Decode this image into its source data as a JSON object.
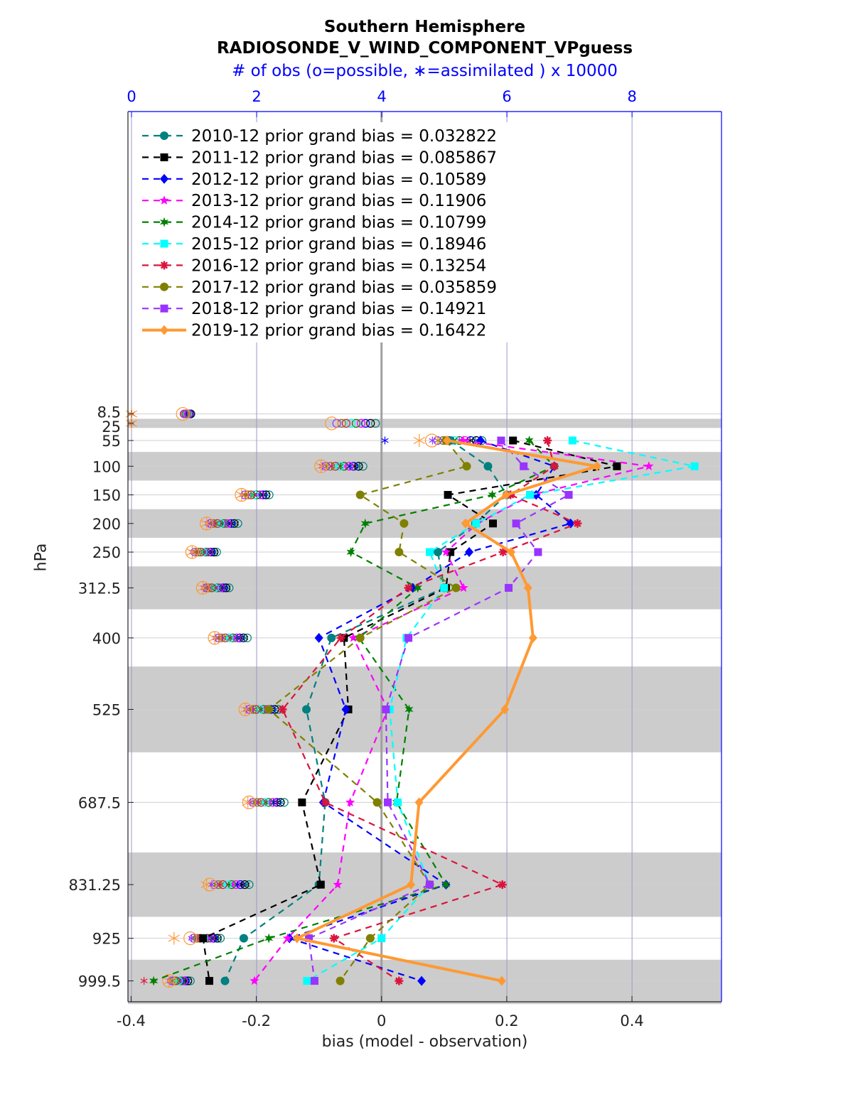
{
  "chart_data": {
    "type": "line",
    "title": "Southern Hemisphere",
    "subtitle": "RADIOSONDE_V_WIND_COMPONENT_VPguess",
    "top_axis_label": "# of obs (o=possible, ∗=assimilated ) x 10000",
    "xlabel": "bias (model - observation)",
    "ylabel": "hPa",
    "xlim": [
      -0.405,
      0.543
    ],
    "top_xlim": [
      0,
      9.43
    ],
    "ylim": [
      1036,
      -520
    ],
    "x_ticks": [
      "-0.4",
      "-0.2",
      "0",
      "0.2",
      "0.4"
    ],
    "x_tick_values": [
      -0.4,
      -0.2,
      0,
      0.2,
      0.4
    ],
    "top_ticks": [
      "0",
      "2",
      "4",
      "6",
      "8"
    ],
    "top_tick_values": [
      0,
      2,
      4,
      6,
      8
    ],
    "y_ticks": [
      "8.5",
      "25",
      "55",
      "100",
      "150",
      "200",
      "250",
      "312.5",
      "400",
      "525",
      "687.5",
      "831.25",
      "925",
      "999.5"
    ],
    "levels": [
      8.5,
      25,
      55,
      100,
      150,
      200,
      250,
      312.5,
      400,
      525,
      687.5,
      831.25,
      925,
      999.5
    ],
    "bias_levels": [
      55,
      100,
      150,
      200,
      250,
      312.5,
      400,
      525,
      687.5,
      831.25,
      925,
      999.5
    ],
    "shaded_bands_hPa": [
      [
        17,
        33
      ],
      [
        75,
        125
      ],
      [
        175,
        225
      ],
      [
        275,
        350
      ],
      [
        450,
        600
      ],
      [
        775,
        887.5
      ],
      [
        962.5,
        1040
      ]
    ],
    "legend_position": "top-left",
    "colors": {
      "axis_top": "#0000ff",
      "band": "#cccccc",
      "grid": "#d0d0d0",
      "zero_line": "#a0a0a0"
    },
    "series": [
      {
        "name": "2010-12 prior grand bias = 0.032822",
        "color": "#008080",
        "marker": "circle",
        "style": "dashed",
        "bias": [
          0.11,
          0.17,
          0.2,
          0.15,
          0.09,
          0.1,
          -0.08,
          -0.12,
          -0.09,
          -0.1,
          -0.22,
          -0.25
        ],
        "obs_possible": [
          0.95,
          3.9,
          5.6,
          3.7,
          2.2,
          1.7,
          1.36,
          1.56,
          1.85,
          2.35,
          2.44,
          1.88,
          1.42,
          0.94
        ],
        "obs_assimilated": [
          0,
          0,
          5.5,
          3.64,
          2.16,
          1.66,
          1.33,
          1.53,
          1.81,
          2.3,
          2.39,
          1.84,
          1.39,
          0.9
        ]
      },
      {
        "name": "2011-12 prior grand bias = 0.085867",
        "color": "#000000",
        "marker": "square",
        "style": "dashed",
        "bias": [
          0.21,
          0.376,
          0.106,
          0.178,
          0.11,
          0.103,
          -0.06,
          -0.053,
          -0.127,
          -0.097,
          -0.285,
          -0.275
        ],
        "obs_possible": [
          0.94,
          3.82,
          5.51,
          3.63,
          2.15,
          1.64,
          1.32,
          1.51,
          1.79,
          2.29,
          2.38,
          1.81,
          1.37,
          0.9
        ],
        "obs_assimilated": [
          0,
          0,
          5.41,
          3.57,
          2.11,
          1.6,
          1.29,
          1.48,
          1.75,
          2.24,
          2.33,
          1.77,
          1.34,
          0.87
        ]
      },
      {
        "name": "2012-12 prior grand bias = 0.10589",
        "color": "#0000ff",
        "marker": "diamond",
        "style": "dashed",
        "bias": [
          0.158,
          0.276,
          0.247,
          0.302,
          0.14,
          0.05,
          -0.1,
          -0.057,
          -0.093,
          0.103,
          -0.147,
          0.064
        ],
        "obs_possible": [
          0.92,
          3.74,
          5.42,
          3.55,
          2.1,
          1.59,
          1.27,
          1.47,
          1.73,
          2.23,
          2.32,
          1.74,
          1.31,
          0.86
        ],
        "obs_assimilated": [
          0,
          0,
          4.05,
          3.49,
          2.06,
          1.55,
          1.24,
          1.44,
          1.69,
          2.18,
          2.27,
          1.7,
          1.28,
          0.83
        ]
      },
      {
        "name": "2013-12 prior grand bias = 0.11906",
        "color": "#ff00ff",
        "marker": "pentagram",
        "style": "dashed",
        "bias": [
          0.13,
          0.427,
          0.24,
          0.153,
          0.103,
          0.131,
          -0.045,
          0.01,
          -0.05,
          -0.07,
          -0.15,
          -0.203
        ],
        "obs_possible": [
          0.91,
          3.67,
          5.33,
          3.48,
          2.05,
          1.53,
          1.23,
          1.42,
          1.68,
          2.17,
          2.26,
          1.67,
          1.26,
          0.83
        ],
        "obs_assimilated": [
          0,
          0,
          5.24,
          3.42,
          2.01,
          1.5,
          1.2,
          1.39,
          1.64,
          2.13,
          2.21,
          1.63,
          1.23,
          0.8
        ]
      },
      {
        "name": "2014-12 prior grand bias = 0.10799",
        "color": "#008000",
        "marker": "hexagram",
        "style": "dashed",
        "bias": [
          0.236,
          0.276,
          0.177,
          -0.026,
          -0.049,
          0.058,
          -0.036,
          0.044,
          0.024,
          0.103,
          -0.18,
          -0.364
        ],
        "obs_possible": [
          0.89,
          3.59,
          5.24,
          3.4,
          2.0,
          1.48,
          1.19,
          1.37,
          1.62,
          2.11,
          2.19,
          1.6,
          1.21,
          0.79
        ],
        "obs_assimilated": [
          0,
          0,
          5.15,
          3.34,
          1.96,
          1.45,
          1.16,
          1.34,
          1.58,
          2.07,
          2.15,
          1.56,
          1.18,
          0.76
        ]
      },
      {
        "name": "2015-12 prior grand bias = 0.18946",
        "color": "#00ffff",
        "marker": "square",
        "style": "dashed",
        "bias": [
          0.305,
          0.5,
          0.237,
          0.151,
          0.077,
          0.1,
          0.04,
          0.013,
          0.026,
          0.077,
          0.0,
          -0.119
        ],
        "obs_possible": [
          0.88,
          3.51,
          5.16,
          3.33,
          1.96,
          1.42,
          1.14,
          1.33,
          1.56,
          2.05,
          2.13,
          1.53,
          1.15,
          0.75
        ],
        "obs_assimilated": [
          0,
          0,
          5.07,
          3.27,
          1.92,
          1.39,
          1.11,
          1.3,
          1.52,
          2.01,
          2.09,
          1.49,
          1.12,
          0.72
        ]
      },
      {
        "name": "2016-12 prior grand bias = 0.13254",
        "color": "#dc143c",
        "marker": "asterisk",
        "style": "dashed",
        "bias": [
          0.265,
          0.276,
          0.206,
          0.313,
          0.194,
          0.043,
          -0.065,
          -0.158,
          -0.09,
          0.193,
          -0.076,
          0.028
        ],
        "obs_possible": [
          0.87,
          3.43,
          5.07,
          3.26,
          1.91,
          1.37,
          1.1,
          1.28,
          1.5,
          1.99,
          2.07,
          1.46,
          1.1,
          0.71
        ],
        "obs_assimilated": [
          0,
          0,
          4.98,
          3.2,
          1.87,
          1.34,
          1.07,
          1.25,
          1.46,
          1.95,
          2.03,
          1.42,
          1.07,
          0.2
        ]
      },
      {
        "name": "2017-12 prior grand bias = 0.035859",
        "color": "#808000",
        "marker": "circle",
        "style": "dashed",
        "bias": [
          0.103,
          0.136,
          -0.034,
          0.036,
          0.028,
          0.119,
          -0.034,
          -0.18,
          -0.007,
          0.077,
          -0.018,
          -0.066
        ],
        "obs_possible": [
          0.85,
          3.36,
          4.98,
          3.18,
          1.86,
          1.31,
          1.06,
          1.23,
          1.44,
          1.94,
          2.01,
          1.39,
          1.05,
          0.68
        ],
        "obs_assimilated": [
          0,
          0,
          4.9,
          3.12,
          1.82,
          1.28,
          1.03,
          1.2,
          1.4,
          1.9,
          1.97,
          1.35,
          1.02,
          0.65
        ]
      },
      {
        "name": "2018-12 prior grand bias = 0.14921",
        "color": "#9933ff",
        "marker": "square",
        "style": "dashed",
        "bias": [
          0.191,
          0.227,
          0.299,
          0.215,
          0.25,
          0.203,
          0.043,
          0.007,
          0.01,
          0.077,
          -0.116,
          -0.107
        ],
        "obs_possible": [
          0.84,
          3.28,
          4.89,
          3.11,
          1.81,
          1.26,
          1.01,
          1.19,
          1.39,
          1.88,
          1.94,
          1.32,
          0.99,
          0.64
        ],
        "obs_assimilated": [
          0,
          0,
          4.81,
          3.05,
          1.77,
          1.23,
          0.98,
          1.16,
          1.35,
          1.84,
          1.9,
          1.28,
          0.96,
          0.61
        ]
      },
      {
        "name": "2019-12 prior grand bias = 0.16422",
        "color": "#ff9933",
        "marker": "diamond",
        "style": "solid",
        "bias": [
          0.105,
          0.344,
          0.199,
          0.134,
          0.207,
          0.234,
          0.242,
          0.197,
          0.06,
          0.047,
          -0.135,
          0.192
        ],
        "obs_possible": [
          0.82,
          3.2,
          4.8,
          3.03,
          1.76,
          1.2,
          0.97,
          1.14,
          1.33,
          1.82,
          1.88,
          1.25,
          0.94,
          0.6
        ],
        "obs_assimilated": [
          0,
          0,
          4.6,
          3.03,
          1.76,
          1.2,
          0.97,
          1.14,
          1.33,
          1.82,
          1.86,
          1.2,
          0.68,
          0.6
        ]
      }
    ]
  }
}
